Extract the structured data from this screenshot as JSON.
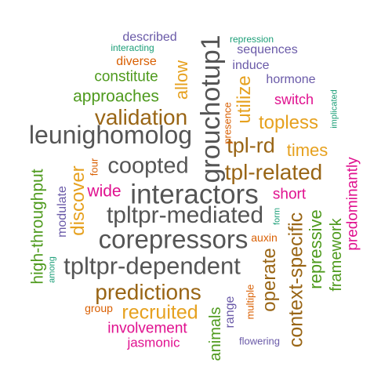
{
  "colors": {
    "gray": "#555555",
    "brown": "#996515",
    "gold": "#e6a11f",
    "green": "#4e9a1d",
    "magenta": "#e0118f",
    "purple": "#6a5aa8",
    "orange": "#d95f02",
    "teal": "#1b9e77"
  },
  "words": [
    {
      "text": "described",
      "color": "purple"
    },
    {
      "text": "repression",
      "color": "teal"
    },
    {
      "text": "interacting",
      "color": "teal"
    },
    {
      "text": "sequences",
      "color": "purple"
    },
    {
      "text": "diverse",
      "color": "orange"
    },
    {
      "text": "induce",
      "color": "purple"
    },
    {
      "text": "constitute",
      "color": "green"
    },
    {
      "text": "hormone",
      "color": "purple"
    },
    {
      "text": "approaches",
      "color": "green"
    },
    {
      "text": "switch",
      "color": "magenta"
    },
    {
      "text": "validation",
      "color": "brown"
    },
    {
      "text": "topless",
      "color": "gold"
    },
    {
      "text": "leunighomolog",
      "color": "gray"
    },
    {
      "text": "tpl-rd",
      "color": "brown"
    },
    {
      "text": "times",
      "color": "gold"
    },
    {
      "text": "coopted",
      "color": "gray"
    },
    {
      "text": "tpl-related",
      "color": "brown"
    },
    {
      "text": "wide",
      "color": "magenta"
    },
    {
      "text": "interactors",
      "color": "gray"
    },
    {
      "text": "short",
      "color": "magenta"
    },
    {
      "text": "tpltpr-mediated",
      "color": "gray"
    },
    {
      "text": "corepressors",
      "color": "gray"
    },
    {
      "text": "auxin",
      "color": "orange"
    },
    {
      "text": "tpltpr-dependent",
      "color": "gray"
    },
    {
      "text": "predictions",
      "color": "brown"
    },
    {
      "text": "group",
      "color": "orange"
    },
    {
      "text": "recruited",
      "color": "gold"
    },
    {
      "text": "involvement",
      "color": "magenta"
    },
    {
      "text": "jasmonic",
      "color": "magenta"
    },
    {
      "text": "flowering",
      "color": "purple"
    },
    {
      "text": "grouchotup1",
      "color": "gray"
    },
    {
      "text": "allow",
      "color": "gold"
    },
    {
      "text": "utilize",
      "color": "gold"
    },
    {
      "text": "presence",
      "color": "orange"
    },
    {
      "text": "implicated",
      "color": "teal"
    },
    {
      "text": "predominantly",
      "color": "magenta"
    },
    {
      "text": "high-throughput",
      "color": "green"
    },
    {
      "text": "modulate",
      "color": "purple"
    },
    {
      "text": "among",
      "color": "teal"
    },
    {
      "text": "discover",
      "color": "gold"
    },
    {
      "text": "four",
      "color": "orange"
    },
    {
      "text": "form",
      "color": "teal"
    },
    {
      "text": "operate",
      "color": "brown"
    },
    {
      "text": "context-specific",
      "color": "brown"
    },
    {
      "text": "repressive",
      "color": "green"
    },
    {
      "text": "framework",
      "color": "green"
    },
    {
      "text": "range",
      "color": "purple"
    },
    {
      "text": "multiple",
      "color": "orange"
    },
    {
      "text": "animals",
      "color": "green"
    }
  ]
}
